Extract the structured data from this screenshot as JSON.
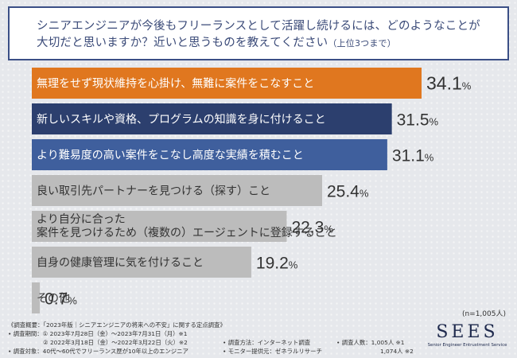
{
  "question": {
    "line1": "シニアエンジニアが今後もフリーランスとして活躍し続けるには、どのようなことが",
    "line2": "大切だと思いますか？近いと思うものを教えてください",
    "line2_small": "（上位3つまで）"
  },
  "chart_data": {
    "type": "bar",
    "orientation": "horizontal",
    "categories": [
      "無理をせず現状維持を心掛け、無難に案件をこなすこと",
      "新しいスキルや資格、プログラムの知識を身に付けること",
      "より難易度の高い案件をこなし高度な実績を積むこと",
      "良い取引先パートナーを見つける（探す）こと",
      "より自分に合った\n案件を見つけるため（複数の）エージェントに登録すること",
      "自身の健康管理に気を付けること",
      "その他"
    ],
    "values": [
      34.1,
      31.5,
      31.1,
      25.4,
      22.3,
      19.2,
      0.7
    ],
    "value_labels": [
      "34.1%",
      "31.5%",
      "31.1%",
      "25.4%",
      "22.3%",
      "19.2%",
      "0.7%"
    ],
    "bar_colors": [
      "#e0771f",
      "#2c3f6e",
      "#3f5f9d",
      "#bcbcbc",
      "#bcbcbc",
      "#bcbcbc",
      "#bcbcbc"
    ],
    "label_colors": [
      "#ffffff",
      "#ffffff",
      "#ffffff",
      "#333333",
      "#333333",
      "#333333",
      "#333333"
    ],
    "xlim": [
      0,
      34.1
    ],
    "grid": false,
    "note": "(n=1,005人)"
  },
  "footer": {
    "line1": "《調査概要：「2023年版｜シニアエンジニアの将来への不安」に関する定点調査》",
    "line2": "• 調査期間：① 2023年7月28日（金）～2023年7月31日（月）※1",
    "line3": "② 2022年3月18日（金）～2022年3月22日（火）※2",
    "line4": "• 調査対象：40代～60代でフリーランス歴が10年以上のエンジニア",
    "method": "• 調査方法：インターネット調査",
    "provider": "• モニター提供元：ゼネラルリサーチ",
    "count1": "• 調査人数：1,005人 ※1",
    "count2": "1,074人 ※2"
  },
  "logo": {
    "name": "SEES",
    "subtitle": "Senior Engineer Entrustment Service"
  }
}
